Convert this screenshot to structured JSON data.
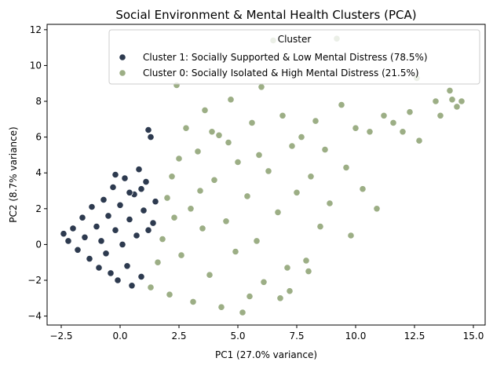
{
  "chart_data": {
    "type": "scatter",
    "title": "Social Environment & Mental Health Clusters (PCA)",
    "xlabel": "PC1 (27.0% variance)",
    "ylabel": "PC2 (8.7% variance)",
    "xlim": [
      -3.1,
      15.5
    ],
    "ylim": [
      -4.5,
      12.3
    ],
    "x_ticks": [
      -2.5,
      0.0,
      2.5,
      5.0,
      7.5,
      10.0,
      12.5,
      15.0
    ],
    "x_tick_labels": [
      "−2.5",
      "0.0",
      "2.5",
      "5.0",
      "7.5",
      "10.0",
      "12.5",
      "15.0"
    ],
    "y_ticks": [
      -4,
      -2,
      0,
      2,
      4,
      6,
      8,
      10,
      12
    ],
    "y_tick_labels": [
      "−4",
      "−2",
      "0",
      "2",
      "4",
      "6",
      "8",
      "10",
      "12"
    ],
    "grid": false,
    "legend": {
      "title": "Cluster",
      "position": "top-right"
    },
    "series": [
      {
        "name": "Cluster 1: Socially Supported & Low Mental Distress (78.5%)",
        "color": "#2d3a4f",
        "points": [
          [
            -2.4,
            0.6
          ],
          [
            -2.2,
            0.2
          ],
          [
            -2.0,
            0.9
          ],
          [
            -1.8,
            -0.3
          ],
          [
            -1.6,
            1.5
          ],
          [
            -1.5,
            0.4
          ],
          [
            -1.3,
            -0.8
          ],
          [
            -1.2,
            2.1
          ],
          [
            -1.0,
            1.0
          ],
          [
            -0.9,
            -1.3
          ],
          [
            -0.8,
            0.2
          ],
          [
            -0.7,
            2.5
          ],
          [
            -0.6,
            -0.5
          ],
          [
            -0.5,
            1.6
          ],
          [
            -0.4,
            -1.6
          ],
          [
            -0.3,
            3.2
          ],
          [
            -0.2,
            0.8
          ],
          [
            -0.1,
            -2.0
          ],
          [
            0.0,
            2.2
          ],
          [
            0.1,
            0.0
          ],
          [
            0.2,
            3.7
          ],
          [
            0.3,
            -1.2
          ],
          [
            0.4,
            1.4
          ],
          [
            0.5,
            -2.3
          ],
          [
            0.6,
            2.8
          ],
          [
            0.7,
            0.5
          ],
          [
            0.8,
            4.2
          ],
          [
            0.9,
            -1.8
          ],
          [
            1.0,
            1.9
          ],
          [
            1.1,
            3.5
          ],
          [
            1.2,
            6.4
          ],
          [
            1.3,
            6.0
          ],
          [
            1.2,
            0.8
          ],
          [
            0.9,
            3.1
          ],
          [
            0.4,
            2.9
          ],
          [
            -0.2,
            3.9
          ],
          [
            1.4,
            1.2
          ],
          [
            1.5,
            2.4
          ]
        ]
      },
      {
        "name": "Cluster 0: Socially Isolated & High Mental Distress (21.5%)",
        "color": "#9cae85",
        "points": [
          [
            1.3,
            -2.4
          ],
          [
            1.6,
            -1.0
          ],
          [
            1.8,
            0.3
          ],
          [
            2.0,
            2.6
          ],
          [
            2.1,
            -2.8
          ],
          [
            2.3,
            1.5
          ],
          [
            2.5,
            4.8
          ],
          [
            2.6,
            -0.6
          ],
          [
            2.8,
            6.5
          ],
          [
            3.0,
            2.0
          ],
          [
            3.1,
            -3.2
          ],
          [
            3.3,
            5.2
          ],
          [
            3.5,
            0.9
          ],
          [
            3.6,
            7.5
          ],
          [
            3.8,
            -1.7
          ],
          [
            4.0,
            3.6
          ],
          [
            4.2,
            6.1
          ],
          [
            4.3,
            -3.5
          ],
          [
            4.5,
            1.3
          ],
          [
            4.7,
            8.1
          ],
          [
            4.9,
            -0.4
          ],
          [
            5.0,
            4.6
          ],
          [
            5.2,
            -3.8
          ],
          [
            5.4,
            2.7
          ],
          [
            5.6,
            6.8
          ],
          [
            5.8,
            0.2
          ],
          [
            6.0,
            8.8
          ],
          [
            6.1,
            -2.1
          ],
          [
            6.3,
            4.1
          ],
          [
            6.5,
            11.4
          ],
          [
            6.7,
            1.8
          ],
          [
            6.9,
            7.2
          ],
          [
            7.1,
            -1.3
          ],
          [
            7.3,
            5.5
          ],
          [
            7.5,
            2.9
          ],
          [
            7.7,
            6.0
          ],
          [
            7.9,
            -0.9
          ],
          [
            8.1,
            3.8
          ],
          [
            8.3,
            6.9
          ],
          [
            8.5,
            1.0
          ],
          [
            8.7,
            5.3
          ],
          [
            8.9,
            2.3
          ],
          [
            9.2,
            11.5
          ],
          [
            9.4,
            7.8
          ],
          [
            9.6,
            4.3
          ],
          [
            9.8,
            0.5
          ],
          [
            10.0,
            6.5
          ],
          [
            10.3,
            3.1
          ],
          [
            10.6,
            6.3
          ],
          [
            10.9,
            2.0
          ],
          [
            11.2,
            7.2
          ],
          [
            11.6,
            6.8
          ],
          [
            12.0,
            6.3
          ],
          [
            12.3,
            7.4
          ],
          [
            12.6,
            9.3
          ],
          [
            12.7,
            5.8
          ],
          [
            13.4,
            8.0
          ],
          [
            13.6,
            7.2
          ],
          [
            14.0,
            8.6
          ],
          [
            14.1,
            8.1
          ],
          [
            14.3,
            7.7
          ],
          [
            14.5,
            8.0
          ],
          [
            2.4,
            8.9
          ],
          [
            3.9,
            6.3
          ],
          [
            5.5,
            -2.9
          ],
          [
            6.8,
            -3.0
          ],
          [
            7.2,
            -2.6
          ],
          [
            8.0,
            -1.5
          ],
          [
            2.2,
            3.8
          ],
          [
            3.4,
            3.0
          ],
          [
            4.6,
            5.7
          ],
          [
            5.9,
            5.0
          ]
        ]
      }
    ]
  }
}
